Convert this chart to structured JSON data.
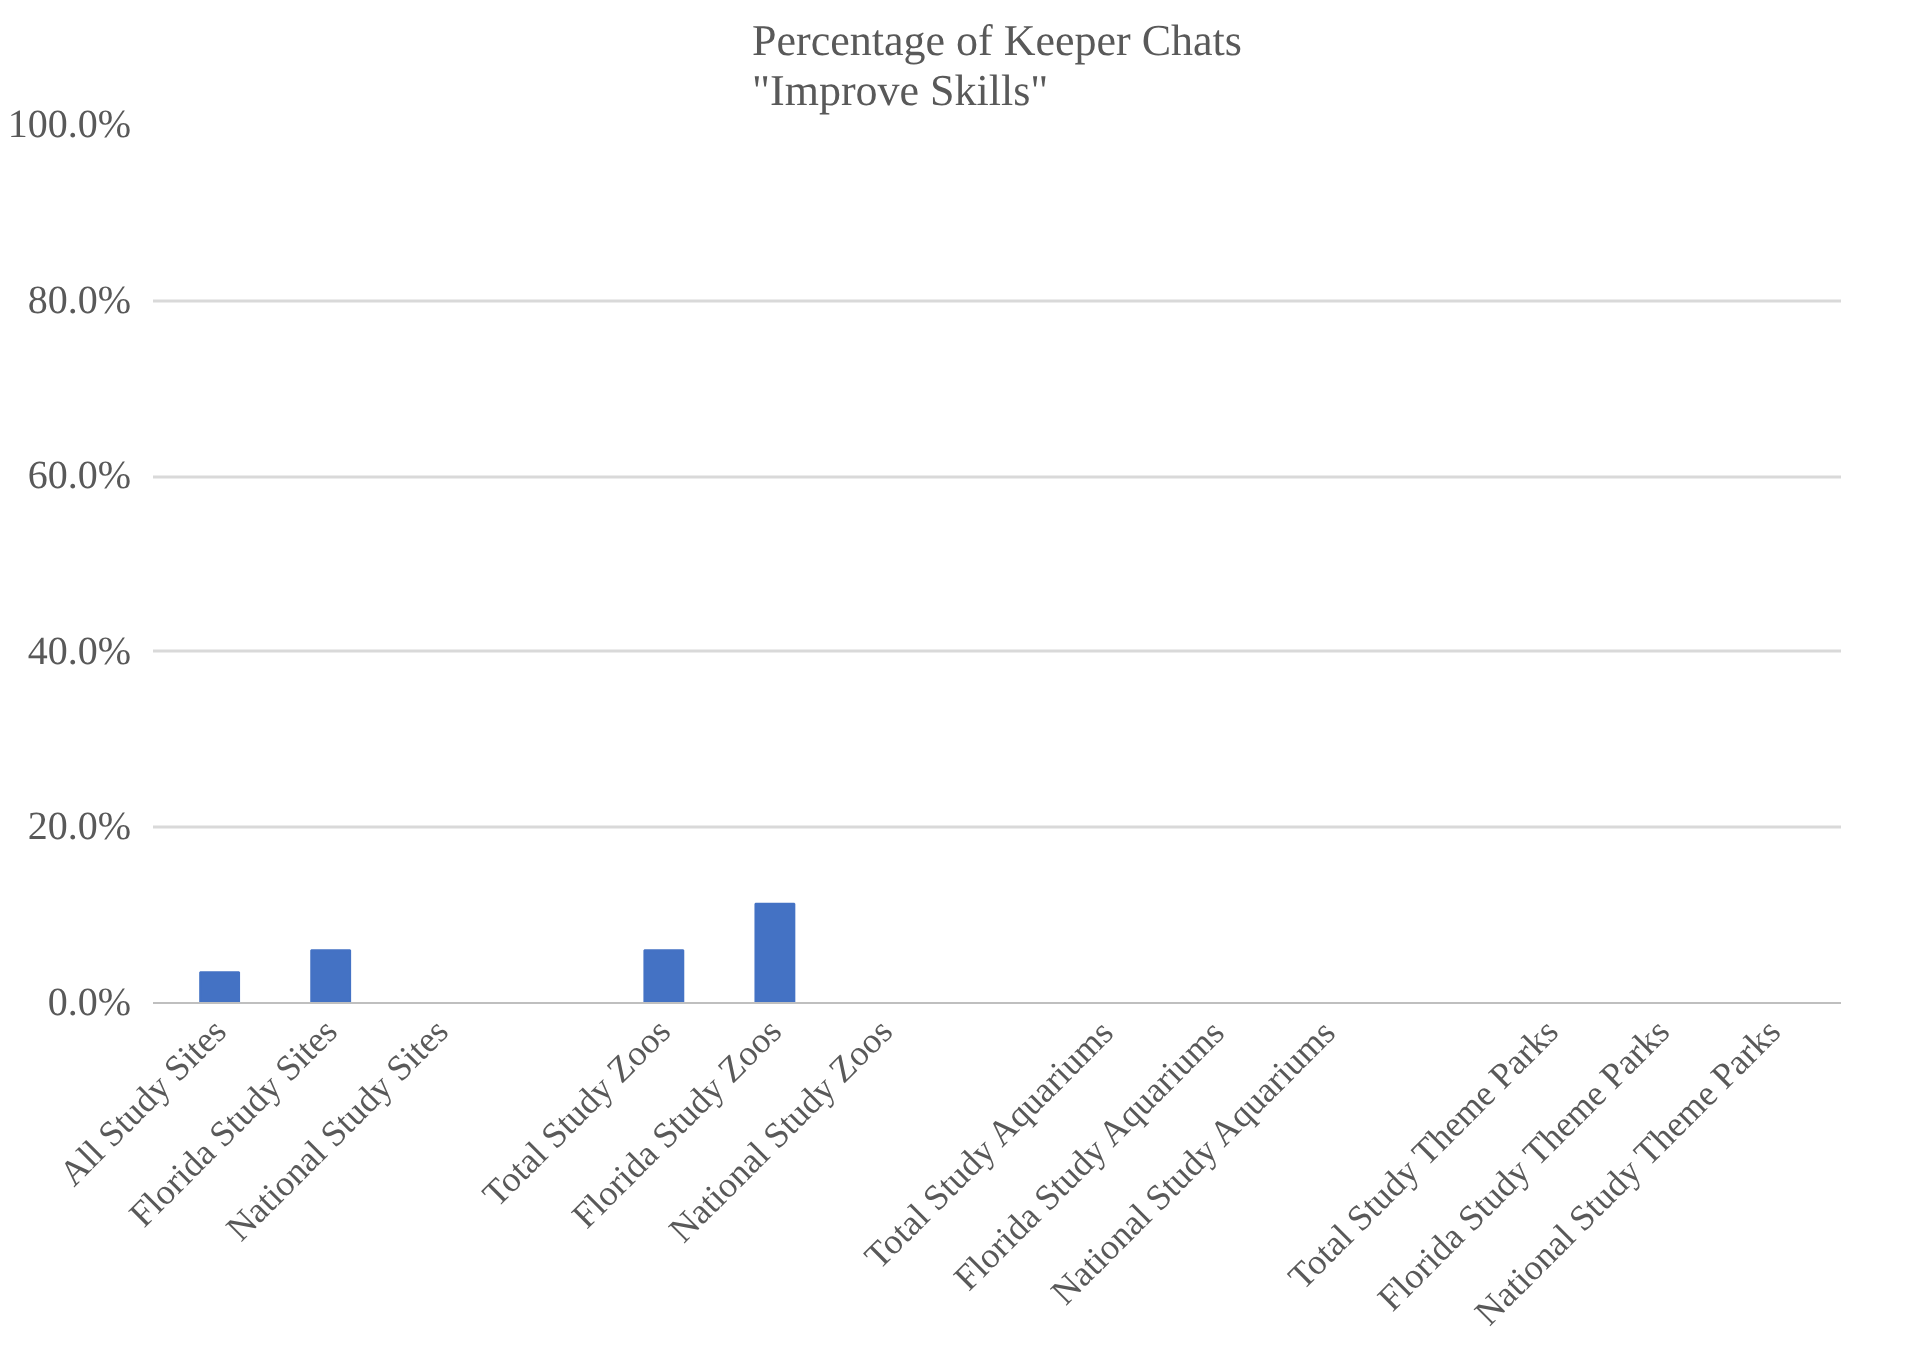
{
  "chart_data": {
    "type": "bar",
    "title": "Percentage of Keeper Chats\n\"Improve Skills\"",
    "categories": [
      "All Study Sites",
      "Florida Study Sites",
      "National Study Sites",
      null,
      "Total Study Zoos",
      "Florida Study Zoos",
      "National Study Zoos",
      null,
      "Total Study Aquariums",
      "Florida Study Aquariums",
      "National Study Aquariums",
      null,
      "Total Study Theme Parks",
      "Florida Study Theme Parks",
      "National Study Theme Parks"
    ],
    "values": [
      3.5,
      6.0,
      0,
      null,
      6.0,
      11.3,
      0,
      null,
      0,
      0,
      0,
      null,
      0,
      0,
      0
    ],
    "color": "#4472c4",
    "ylim": [
      0,
      100
    ],
    "yticks": [
      {
        "value": 0,
        "label": "0.0%"
      },
      {
        "value": 20,
        "label": "20.0%"
      },
      {
        "value": 40,
        "label": "40.0%"
      },
      {
        "value": 60,
        "label": "60.0%"
      },
      {
        "value": 80,
        "label": "80.0%"
      },
      {
        "value": 100,
        "label": "100.0%"
      }
    ],
    "grid": "y"
  }
}
